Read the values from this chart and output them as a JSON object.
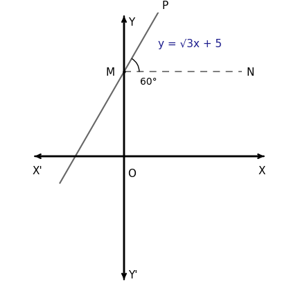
{
  "equation": "y = √3x + 5",
  "slope": 1.732050808,
  "y_intercept": 5,
  "point_M": [
    0,
    5
  ],
  "point_N_label": "N",
  "point_P_label": "P",
  "point_M_label": "M",
  "point_O_label": "O",
  "angle_label": "60°",
  "axis_color": "#000000",
  "line_color": "#666666",
  "dashed_color": "#666666",
  "label_color_equation": "#1a1a8c",
  "label_color_points": "#000000",
  "x_axis_label": "X",
  "x_prime_label": "X'",
  "y_axis_label": "Y",
  "y_prime_label": "Y'",
  "figsize": [
    4.31,
    4.1
  ],
  "dpi": 100,
  "xlim": [
    -5.5,
    8.5
  ],
  "ylim": [
    -7.5,
    8.5
  ],
  "x_origin": 0,
  "y_origin": 0,
  "M_x": 0,
  "M_y": 5,
  "x_N": 7.0,
  "x_P": 2.1,
  "x_low": -3.8
}
